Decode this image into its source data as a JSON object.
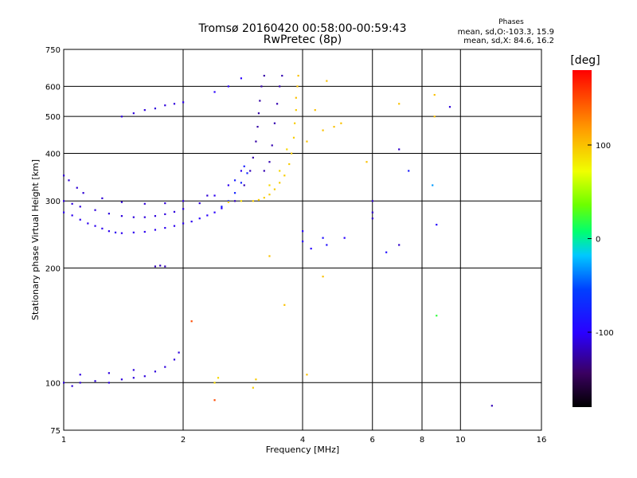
{
  "chart_data": {
    "type": "scatter",
    "title": "Tromsø 20160420 00:58:00-00:59:43",
    "subtitle": "RwPretec (8p)",
    "xlabel": "Frequency [MHz]",
    "ylabel": "Stationary phase Virtual Height [km]",
    "x_scale": "log",
    "y_scale": "log",
    "xlim": [
      1,
      16
    ],
    "ylim": [
      75,
      750
    ],
    "x_ticks": [
      1,
      2,
      4,
      6,
      8,
      10,
      16
    ],
    "y_ticks": [
      75,
      100,
      200,
      300,
      400,
      500,
      600,
      750
    ],
    "grid": true,
    "stats": {
      "header": "Phases",
      "line1": "mean, sd,O:-103.3, 15.9",
      "line2": "mean, sd,X:  84.6, 16.2"
    },
    "colorbar": {
      "label": "[deg]",
      "ticks": [
        -100,
        0,
        100
      ],
      "range": [
        -180,
        180
      ]
    },
    "series": [
      {
        "name": "",
        "points": [
          {
            "x": 1.0,
            "y": 280,
            "phase": -105
          },
          {
            "x": 1.05,
            "y": 275,
            "phase": -105
          },
          {
            "x": 1.1,
            "y": 268,
            "phase": -105
          },
          {
            "x": 1.15,
            "y": 262,
            "phase": -105
          },
          {
            "x": 1.2,
            "y": 258,
            "phase": -105
          },
          {
            "x": 1.25,
            "y": 254,
            "phase": -105
          },
          {
            "x": 1.3,
            "y": 250,
            "phase": -105
          },
          {
            "x": 1.35,
            "y": 248,
            "phase": -105
          },
          {
            "x": 1.4,
            "y": 247,
            "phase": -105
          },
          {
            "x": 1.5,
            "y": 248,
            "phase": -105
          },
          {
            "x": 1.6,
            "y": 249,
            "phase": -105
          },
          {
            "x": 1.7,
            "y": 252,
            "phase": -105
          },
          {
            "x": 1.8,
            "y": 255,
            "phase": -105
          },
          {
            "x": 1.9,
            "y": 258,
            "phase": -105
          },
          {
            "x": 2.0,
            "y": 262,
            "phase": -105
          },
          {
            "x": 2.1,
            "y": 265,
            "phase": -105
          },
          {
            "x": 2.2,
            "y": 270,
            "phase": -100
          },
          {
            "x": 2.3,
            "y": 275,
            "phase": -100
          },
          {
            "x": 2.4,
            "y": 280,
            "phase": -100
          },
          {
            "x": 2.5,
            "y": 287,
            "phase": -100
          },
          {
            "x": 1.0,
            "y": 300,
            "phase": -110
          },
          {
            "x": 1.05,
            "y": 295,
            "phase": -110
          },
          {
            "x": 1.1,
            "y": 290,
            "phase": -110
          },
          {
            "x": 1.2,
            "y": 284,
            "phase": -110
          },
          {
            "x": 1.3,
            "y": 278,
            "phase": -110
          },
          {
            "x": 1.4,
            "y": 274,
            "phase": -110
          },
          {
            "x": 1.5,
            "y": 272,
            "phase": -110
          },
          {
            "x": 1.6,
            "y": 272,
            "phase": -110
          },
          {
            "x": 1.7,
            "y": 274,
            "phase": -110
          },
          {
            "x": 1.8,
            "y": 277,
            "phase": -110
          },
          {
            "x": 1.9,
            "y": 281,
            "phase": -110
          },
          {
            "x": 2.0,
            "y": 286,
            "phase": -110
          },
          {
            "x": 2.2,
            "y": 296,
            "phase": -110
          },
          {
            "x": 2.4,
            "y": 310,
            "phase": -105
          },
          {
            "x": 2.6,
            "y": 330,
            "phase": -105
          },
          {
            "x": 2.8,
            "y": 360,
            "phase": -105
          },
          {
            "x": 1.0,
            "y": 350,
            "phase": -112
          },
          {
            "x": 1.03,
            "y": 340,
            "phase": -112
          },
          {
            "x": 1.08,
            "y": 325,
            "phase": -112
          },
          {
            "x": 1.12,
            "y": 315,
            "phase": -112
          },
          {
            "x": 1.25,
            "y": 305,
            "phase": -112
          },
          {
            "x": 1.4,
            "y": 298,
            "phase": -112
          },
          {
            "x": 1.6,
            "y": 295,
            "phase": -112
          },
          {
            "x": 1.8,
            "y": 296,
            "phase": -112
          },
          {
            "x": 2.0,
            "y": 300,
            "phase": -112
          },
          {
            "x": 2.3,
            "y": 310,
            "phase": -112
          },
          {
            "x": 2.5,
            "y": 290,
            "phase": -75
          },
          {
            "x": 2.6,
            "y": 300,
            "phase": -75
          },
          {
            "x": 2.7,
            "y": 315,
            "phase": -75
          },
          {
            "x": 2.8,
            "y": 335,
            "phase": -75
          },
          {
            "x": 2.9,
            "y": 355,
            "phase": -75
          },
          {
            "x": 2.7,
            "y": 340,
            "phase": -80
          },
          {
            "x": 2.85,
            "y": 370,
            "phase": -80
          },
          {
            "x": 2.7,
            "y": 300,
            "phase": -120
          },
          {
            "x": 2.85,
            "y": 330,
            "phase": -120
          },
          {
            "x": 2.95,
            "y": 360,
            "phase": -120
          },
          {
            "x": 3.0,
            "y": 390,
            "phase": -125
          },
          {
            "x": 3.05,
            "y": 430,
            "phase": -125
          },
          {
            "x": 3.08,
            "y": 470,
            "phase": -125
          },
          {
            "x": 3.1,
            "y": 510,
            "phase": -125
          },
          {
            "x": 3.12,
            "y": 550,
            "phase": -125
          },
          {
            "x": 3.15,
            "y": 600,
            "phase": -125
          },
          {
            "x": 3.2,
            "y": 640,
            "phase": -125
          },
          {
            "x": 3.2,
            "y": 360,
            "phase": -122
          },
          {
            "x": 3.3,
            "y": 380,
            "phase": -122
          },
          {
            "x": 3.35,
            "y": 420,
            "phase": -122
          },
          {
            "x": 3.4,
            "y": 480,
            "phase": -122
          },
          {
            "x": 3.45,
            "y": 540,
            "phase": -122
          },
          {
            "x": 3.5,
            "y": 600,
            "phase": -122
          },
          {
            "x": 3.55,
            "y": 640,
            "phase": -122
          },
          {
            "x": 3.0,
            "y": 300,
            "phase": 95
          },
          {
            "x": 3.1,
            "y": 302,
            "phase": 95
          },
          {
            "x": 3.2,
            "y": 306,
            "phase": 95
          },
          {
            "x": 3.3,
            "y": 312,
            "phase": 95
          },
          {
            "x": 3.4,
            "y": 322,
            "phase": 95
          },
          {
            "x": 3.5,
            "y": 335,
            "phase": 95
          },
          {
            "x": 3.6,
            "y": 350,
            "phase": 95
          },
          {
            "x": 3.7,
            "y": 375,
            "phase": 95
          },
          {
            "x": 3.75,
            "y": 400,
            "phase": 95
          },
          {
            "x": 3.8,
            "y": 440,
            "phase": 95
          },
          {
            "x": 3.82,
            "y": 480,
            "phase": 95
          },
          {
            "x": 3.85,
            "y": 520,
            "phase": 95
          },
          {
            "x": 3.85,
            "y": 560,
            "phase": 100
          },
          {
            "x": 3.88,
            "y": 600,
            "phase": 100
          },
          {
            "x": 3.9,
            "y": 640,
            "phase": 100
          },
          {
            "x": 2.6,
            "y": 298,
            "phase": 90
          },
          {
            "x": 2.8,
            "y": 300,
            "phase": 90
          },
          {
            "x": 3.3,
            "y": 330,
            "phase": 90
          },
          {
            "x": 3.5,
            "y": 360,
            "phase": 90
          },
          {
            "x": 3.65,
            "y": 410,
            "phase": 90
          },
          {
            "x": 1.4,
            "y": 500,
            "phase": -110
          },
          {
            "x": 1.5,
            "y": 510,
            "phase": -110
          },
          {
            "x": 1.6,
            "y": 520,
            "phase": -110
          },
          {
            "x": 1.7,
            "y": 525,
            "phase": -110
          },
          {
            "x": 1.8,
            "y": 535,
            "phase": -110
          },
          {
            "x": 1.9,
            "y": 540,
            "phase": -110
          },
          {
            "x": 2.0,
            "y": 545,
            "phase": -105
          },
          {
            "x": 2.4,
            "y": 580,
            "phase": -100
          },
          {
            "x": 2.6,
            "y": 600,
            "phase": -100
          },
          {
            "x": 2.8,
            "y": 630,
            "phase": -100
          },
          {
            "x": 1.0,
            "y": 100,
            "phase": -110
          },
          {
            "x": 1.05,
            "y": 98,
            "phase": -110
          },
          {
            "x": 1.1,
            "y": 100,
            "phase": -110
          },
          {
            "x": 1.2,
            "y": 101,
            "phase": -110
          },
          {
            "x": 1.3,
            "y": 100,
            "phase": -110
          },
          {
            "x": 1.4,
            "y": 102,
            "phase": -110
          },
          {
            "x": 1.5,
            "y": 103,
            "phase": -110
          },
          {
            "x": 1.6,
            "y": 104,
            "phase": -110
          },
          {
            "x": 1.7,
            "y": 107,
            "phase": -110
          },
          {
            "x": 1.8,
            "y": 110,
            "phase": -110
          },
          {
            "x": 1.9,
            "y": 115,
            "phase": -110
          },
          {
            "x": 1.95,
            "y": 120,
            "phase": -110
          },
          {
            "x": 1.1,
            "y": 105,
            "phase": -110
          },
          {
            "x": 1.3,
            "y": 106,
            "phase": -110
          },
          {
            "x": 1.5,
            "y": 108,
            "phase": -110
          },
          {
            "x": 2.4,
            "y": 100,
            "phase": 90
          },
          {
            "x": 2.45,
            "y": 103,
            "phase": 90
          },
          {
            "x": 3.0,
            "y": 97,
            "phase": 95
          },
          {
            "x": 3.05,
            "y": 102,
            "phase": 95
          },
          {
            "x": 2.1,
            "y": 145,
            "phase": 150
          },
          {
            "x": 2.4,
            "y": 90,
            "phase": 150
          },
          {
            "x": 1.7,
            "y": 202,
            "phase": -120
          },
          {
            "x": 1.75,
            "y": 203,
            "phase": -120
          },
          {
            "x": 1.8,
            "y": 202,
            "phase": -120
          },
          {
            "x": 3.3,
            "y": 215,
            "phase": 100
          },
          {
            "x": 3.6,
            "y": 160,
            "phase": 100
          },
          {
            "x": 4.5,
            "y": 190,
            "phase": 100
          },
          {
            "x": 4.1,
            "y": 105,
            "phase": 100
          },
          {
            "x": 4.0,
            "y": 250,
            "phase": -100
          },
          {
            "x": 4.0,
            "y": 235,
            "phase": -100
          },
          {
            "x": 4.2,
            "y": 225,
            "phase": -100
          },
          {
            "x": 4.5,
            "y": 240,
            "phase": -90
          },
          {
            "x": 4.6,
            "y": 230,
            "phase": -90
          },
          {
            "x": 5.1,
            "y": 240,
            "phase": -100
          },
          {
            "x": 6.0,
            "y": 300,
            "phase": -115
          },
          {
            "x": 6.0,
            "y": 280,
            "phase": -115
          },
          {
            "x": 6.0,
            "y": 270,
            "phase": -115
          },
          {
            "x": 6.5,
            "y": 220,
            "phase": -90
          },
          {
            "x": 7.0,
            "y": 230,
            "phase": -115
          },
          {
            "x": 7.0,
            "y": 410,
            "phase": -115
          },
          {
            "x": 7.4,
            "y": 360,
            "phase": -80
          },
          {
            "x": 7.0,
            "y": 540,
            "phase": 100
          },
          {
            "x": 8.6,
            "y": 570,
            "phase": 100
          },
          {
            "x": 8.6,
            "y": 500,
            "phase": 100
          },
          {
            "x": 9.4,
            "y": 530,
            "phase": -110
          },
          {
            "x": 8.5,
            "y": 330,
            "phase": -30
          },
          {
            "x": 8.7,
            "y": 260,
            "phase": -95
          },
          {
            "x": 8.7,
            "y": 150,
            "phase": 20
          },
          {
            "x": 12.0,
            "y": 87,
            "phase": -120
          },
          {
            "x": 4.5,
            "y": 460,
            "phase": 100
          },
          {
            "x": 4.8,
            "y": 470,
            "phase": 100
          },
          {
            "x": 4.6,
            "y": 620,
            "phase": 100
          },
          {
            "x": 5.0,
            "y": 480,
            "phase": 100
          },
          {
            "x": 4.1,
            "y": 430,
            "phase": 100
          },
          {
            "x": 4.3,
            "y": 520,
            "phase": 100
          },
          {
            "x": 5.8,
            "y": 380,
            "phase": 100
          }
        ]
      }
    ]
  }
}
